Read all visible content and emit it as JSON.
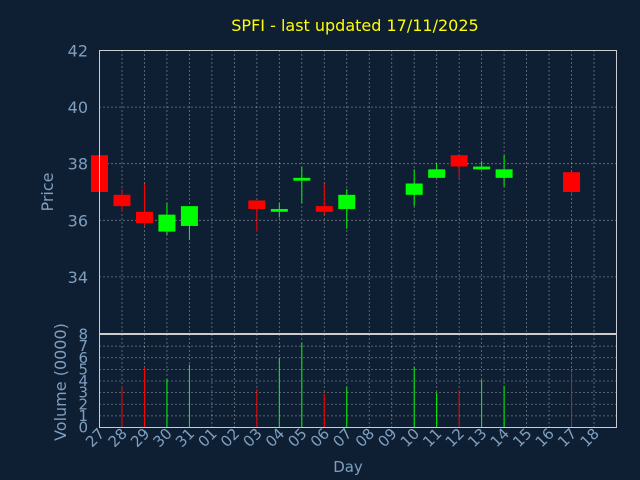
{
  "chart_data": {
    "type": "candlestick",
    "title": "SPFI - last updated 17/11/2025",
    "ylabel": "Price",
    "volume_label": "Volume (0000)",
    "xlabel": "Day",
    "price_ylim": [
      32,
      42
    ],
    "price_yticks": [
      "34",
      "36",
      "38",
      "40",
      "42"
    ],
    "volume_ylim": [
      0,
      8
    ],
    "volume_yticks": [
      "0",
      "1",
      "2",
      "3",
      "4",
      "5",
      "6",
      "7",
      "8"
    ],
    "x_ticks": [
      "27",
      "28",
      "29",
      "30",
      "31",
      "01",
      "02",
      "03",
      "04",
      "05",
      "06",
      "07",
      "08",
      "09",
      "10",
      "11",
      "12",
      "13",
      "14",
      "15",
      "16",
      "17",
      "18"
    ],
    "up_color": "#00ff00",
    "down_color": "#ff0000",
    "candles": [
      {
        "day": "27",
        "open": 38.3,
        "high": 38.3,
        "low": 37.0,
        "close": 37.0,
        "volume": 5.0
      },
      {
        "day": "28",
        "open": 36.9,
        "high": 37.1,
        "low": 36.3,
        "close": 36.5,
        "volume": 3.5
      },
      {
        "day": "29",
        "open": 36.3,
        "high": 37.3,
        "low": 35.8,
        "close": 35.9,
        "volume": 5.2
      },
      {
        "day": "30",
        "open": 35.6,
        "high": 36.6,
        "low": 35.5,
        "close": 36.2,
        "volume": 4.2
      },
      {
        "day": "31",
        "open": 35.8,
        "high": 36.5,
        "low": 35.3,
        "close": 36.5,
        "volume": 5.4
      },
      {
        "day": "03",
        "open": 36.7,
        "high": 36.7,
        "low": 35.6,
        "close": 36.4,
        "volume": 3.3
      },
      {
        "day": "04",
        "open": 36.3,
        "high": 36.6,
        "low": 36.1,
        "close": 36.4,
        "volume": 6.0
      },
      {
        "day": "05",
        "open": 37.4,
        "high": 37.9,
        "low": 36.6,
        "close": 37.5,
        "volume": 7.3
      },
      {
        "day": "06",
        "open": 36.5,
        "high": 37.3,
        "low": 36.2,
        "close": 36.3,
        "volume": 2.9
      },
      {
        "day": "07",
        "open": 36.4,
        "high": 37.1,
        "low": 35.7,
        "close": 36.9,
        "volume": 3.5
      },
      {
        "day": "10",
        "open": 36.9,
        "high": 37.8,
        "low": 36.5,
        "close": 37.3,
        "volume": 5.2
      },
      {
        "day": "11",
        "open": 37.5,
        "high": 38.0,
        "low": 37.5,
        "close": 37.8,
        "volume": 3.0
      },
      {
        "day": "12",
        "open": 38.3,
        "high": 38.3,
        "low": 37.5,
        "close": 37.9,
        "volume": 3.2
      },
      {
        "day": "13",
        "open": 37.8,
        "high": 38.1,
        "low": 37.8,
        "close": 37.9,
        "volume": 4.1
      },
      {
        "day": "14",
        "open": 37.5,
        "high": 38.3,
        "low": 37.2,
        "close": 37.8,
        "volume": 3.6
      },
      {
        "day": "17",
        "open": 37.7,
        "high": 37.7,
        "low": 36.9,
        "close": 37.0,
        "volume": 4.7
      }
    ]
  }
}
